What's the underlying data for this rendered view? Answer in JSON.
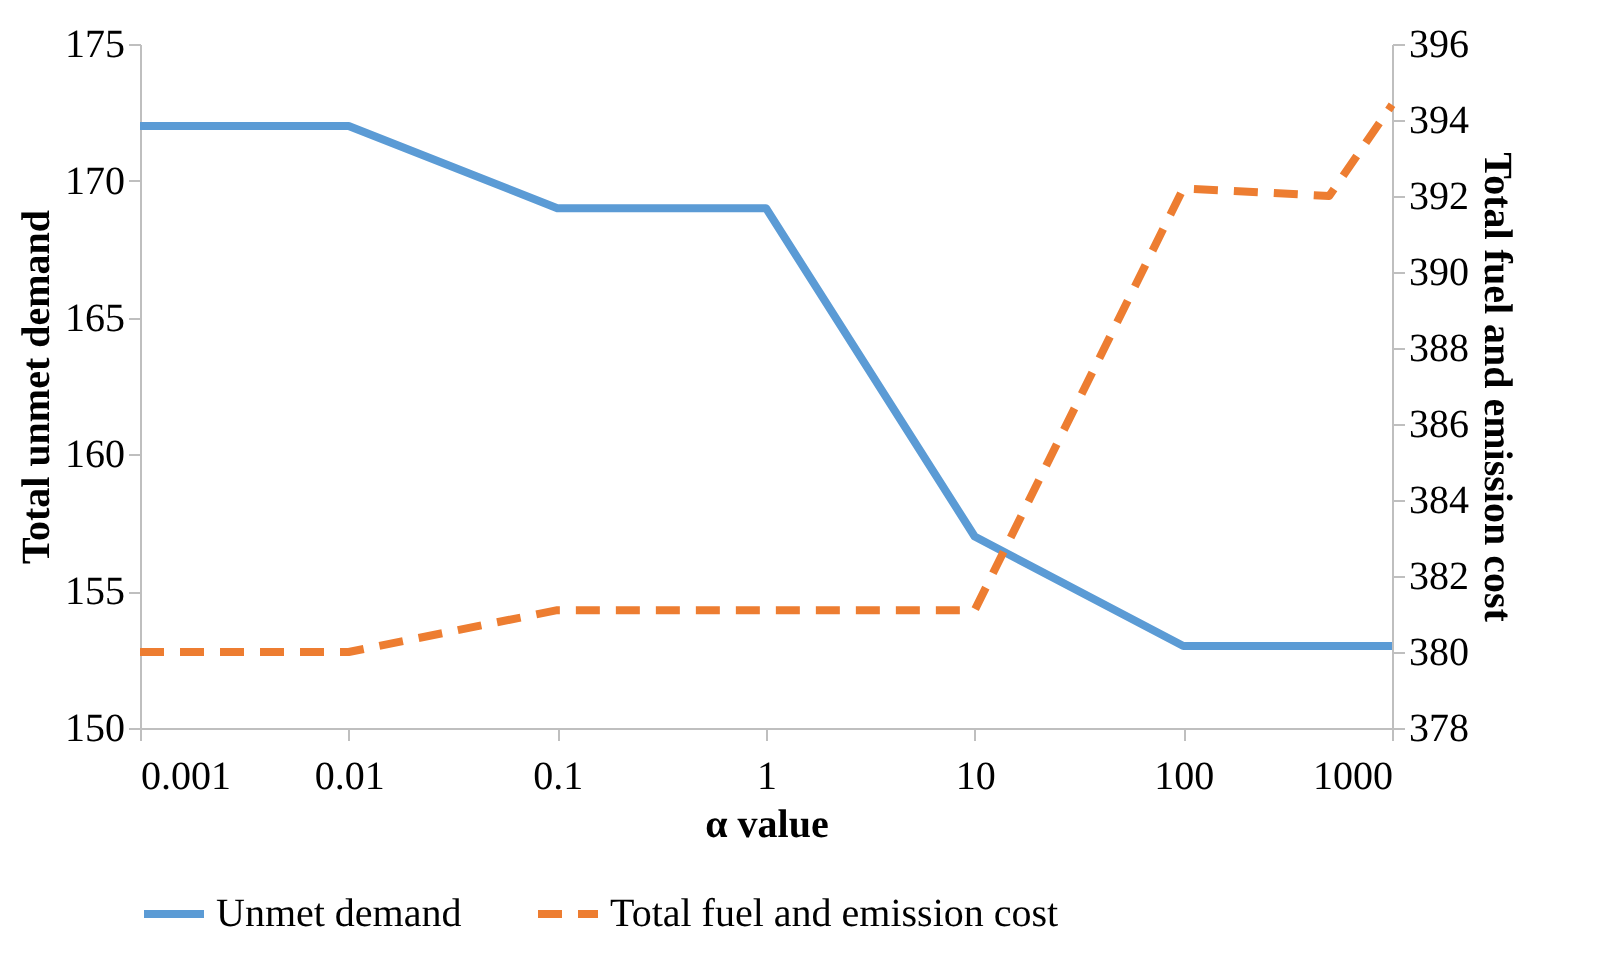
{
  "chart_data": {
    "type": "line",
    "xlabel": "α value",
    "ylabel": "Total unmet demand",
    "y2label": "Total fuel and emission cost",
    "log": "x",
    "xlim": [
      0.001,
      1000
    ],
    "xticks": [
      0.001,
      0.01,
      0.1,
      1,
      10,
      100,
      1000
    ],
    "ylim": [
      150,
      175
    ],
    "yticks": [
      150,
      155,
      160,
      165,
      170,
      175
    ],
    "y2lim": [
      378,
      396
    ],
    "y2ticks": [
      378,
      380,
      382,
      384,
      386,
      388,
      390,
      392,
      394,
      396
    ],
    "grid": false,
    "legend": "bottom",
    "marker": "none",
    "series": [
      {
        "name": "Unmet demand",
        "color": "#5b9bd5",
        "line_style": "solid",
        "x": [
          0.001,
          0.01,
          0.1,
          1,
          10,
          100,
          1000
        ],
        "values": [
          172,
          172,
          169,
          169,
          157,
          153,
          153
        ]
      },
      {
        "name": "Total fuel and emission cost",
        "color": "#ed7d31",
        "line_style": "dashed",
        "axis": "y2",
        "x": [
          0.001,
          0.01,
          0.1,
          1,
          10,
          100,
          500,
          1000
        ],
        "values": [
          380.0,
          380.0,
          381.1,
          381.1,
          381.1,
          392.2,
          392.0,
          394.4
        ]
      }
    ]
  }
}
